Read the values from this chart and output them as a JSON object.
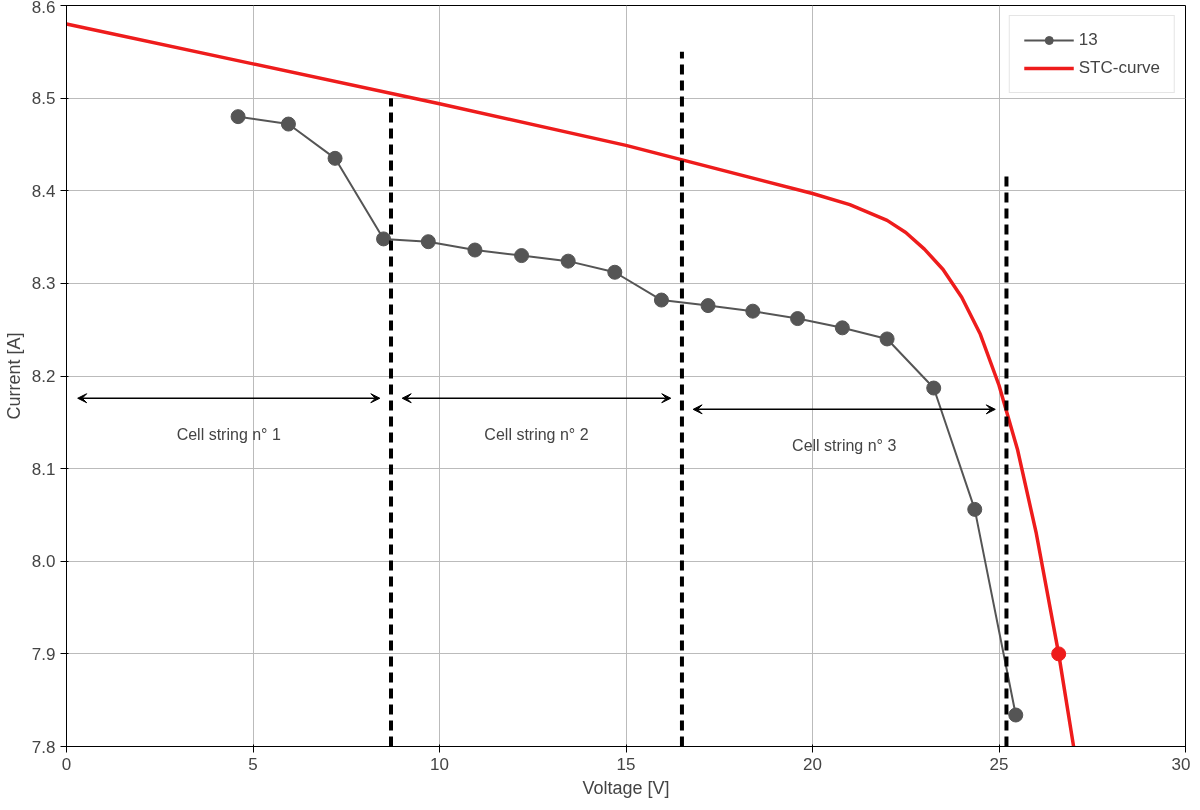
{
  "chart_data": {
    "type": "line",
    "xlabel": "Voltage [V]",
    "ylabel": "Current [A]",
    "xlim": [
      0,
      30
    ],
    "xticks": [
      0,
      5,
      10,
      15,
      20,
      25,
      30
    ],
    "ylim": [
      7.8,
      8.6
    ],
    "yticks": [
      {
        "value": 7.8,
        "label": "7.8"
      },
      {
        "value": 7.9,
        "label": "7.9"
      },
      {
        "value": 8.0,
        "label": "8.0"
      },
      {
        "value": 8.1,
        "label": "8.1"
      },
      {
        "value": 8.2,
        "label": "8.2"
      },
      {
        "value": 8.3,
        "label": "8.3"
      },
      {
        "value": 8.4,
        "label": "8.4"
      },
      {
        "value": 8.5,
        "label": "8.5"
      },
      {
        "value": 8.6,
        "label": "8.6"
      }
    ],
    "grid": true,
    "legend": "top right",
    "series": [
      {
        "name": "13",
        "color": "#555555",
        "marker": "circle",
        "x": [
          4.6,
          5.95,
          7.2,
          8.5,
          9.7,
          10.95,
          12.2,
          13.45,
          14.7,
          15.95,
          17.2,
          18.4,
          19.6,
          20.8,
          22.0,
          23.25,
          24.35,
          25.45
        ],
        "values": [
          8.48,
          8.472,
          8.435,
          8.348,
          8.345,
          8.336,
          8.33,
          8.324,
          8.312,
          8.282,
          8.276,
          8.27,
          8.262,
          8.252,
          8.24,
          8.187,
          8.056,
          7.834
        ]
      },
      {
        "name": "STC-curve",
        "color": "#ee1c1c",
        "marker": "none",
        "x": [
          0,
          5,
          10,
          15,
          20,
          21,
          22,
          22.5,
          23,
          23.5,
          24,
          24.5,
          25,
          25.5,
          26,
          26.6,
          27
        ],
        "values": [
          8.58,
          8.537,
          8.494,
          8.449,
          8.397,
          8.385,
          8.368,
          8.355,
          8.337,
          8.315,
          8.285,
          8.245,
          8.19,
          8.12,
          8.03,
          7.9,
          7.8
        ]
      },
      {
        "type": "scatter",
        "color": "#ee1c1c",
        "marker": "circle",
        "x": [
          26.6
        ],
        "values": [
          7.9
        ]
      },
      {
        "color": "#000000",
        "marker": "none",
        "line_style": "dashed",
        "x": [
          8.7,
          8.7
        ],
        "values": [
          7.8,
          8.5
        ]
      },
      {
        "color": "#000000",
        "marker": "none",
        "line_style": "dashed",
        "x": [
          16.5,
          16.5
        ],
        "values": [
          7.8,
          8.55
        ]
      },
      {
        "color": "#000000",
        "marker": "none",
        "line_style": "dashed",
        "x": [
          25.2,
          25.2
        ],
        "values": [
          7.8,
          8.42
        ]
      }
    ],
    "annotations": [
      "Cell string n° 1",
      "Cell string n° 2",
      "Cell string n° 3"
    ]
  }
}
